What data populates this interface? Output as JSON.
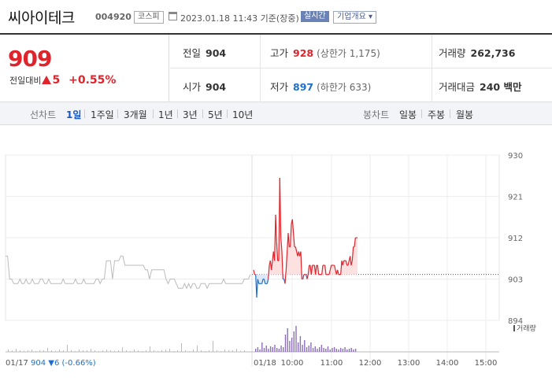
{
  "header": {
    "company_name": "씨아이테크",
    "stock_code": "004920",
    "market": "코스피",
    "date_text": "2023.01.18 11:43 기준(장중)",
    "realtime_label": "실시간",
    "overview_label": "기업개요 ▾",
    "calendar_icon": "calendar-icon"
  },
  "price": {
    "current": "909",
    "change_label": "전일대비",
    "change_value": "5",
    "change_percent": "+0.55%",
    "direction_icon": "up-triangle-icon",
    "up_color": "#e0242c",
    "down_color": "#1f6fc8"
  },
  "stats": {
    "prev_close_label": "전일",
    "prev_close": "904",
    "high_label": "고가",
    "high": "928",
    "upper_limit": "(상한가 1,175)",
    "volume_label": "거래량",
    "volume": "262,736",
    "open_label": "시가",
    "open": "904",
    "low_label": "저가",
    "low": "897",
    "lower_limit": "(하한가 633)",
    "amount_label": "거래대금",
    "amount": "240 백만"
  },
  "tabs": {
    "line_title": "선차트",
    "line_items": [
      "1일",
      "1주일",
      "3개월",
      "1년",
      "3년",
      "5년",
      "10년"
    ],
    "active_line": "1일",
    "candle_title": "봉차트",
    "candle_items": [
      "일봉",
      "주봉",
      "월봉"
    ]
  },
  "footer": {
    "prev_date": "01/17",
    "prev_close": "904",
    "prev_change": "▼6 (-0.66%)"
  },
  "chart_data": {
    "type": "line",
    "title": "",
    "y_ticks": [
      930,
      921,
      912,
      903,
      894
    ],
    "ylim": [
      894,
      930
    ],
    "x_ticks": [
      "01/17",
      "01/18",
      "10:00",
      "11:00",
      "12:00",
      "13:00",
      "14:00",
      "15:00"
    ],
    "reference_price": 904,
    "volume_label": "거래량",
    "series": [
      {
        "name": "",
        "segment": "01/17",
        "color": "#bbbbbb",
        "values": [
          908,
          908,
          903,
          903,
          902,
          902,
          902,
          903,
          902,
          902,
          903,
          902,
          902,
          903,
          902,
          902,
          902,
          903,
          903,
          902,
          902,
          903,
          902,
          902,
          902,
          902,
          902,
          902,
          903,
          902,
          902,
          902,
          902,
          902,
          903,
          902,
          902,
          902,
          903,
          902,
          902,
          902,
          902,
          902,
          903,
          903,
          902,
          903,
          903,
          907,
          907,
          907,
          903,
          907,
          907,
          907,
          908,
          908,
          906,
          906,
          906,
          906,
          906,
          906,
          906,
          906,
          906,
          906,
          905,
          905,
          903,
          905,
          905,
          905,
          905,
          905,
          905,
          905,
          903,
          902,
          903,
          903,
          903,
          902,
          901,
          901,
          901,
          902,
          901,
          902,
          901,
          902,
          902,
          901,
          901,
          902,
          902,
          902,
          901,
          902,
          902,
          902,
          902,
          902,
          902,
          902,
          903,
          902,
          902,
          902,
          902,
          902,
          902,
          902,
          902,
          902,
          903,
          903,
          903,
          904
        ]
      },
      {
        "name": "",
        "segment": "01/18",
        "color": "#e0242c",
        "values": [
          905,
          904,
          904,
          899,
          903,
          902,
          902,
          902,
          902,
          903,
          903,
          902,
          902,
          902,
          903,
          906,
          907,
          905,
          907,
          909,
          907,
          917,
          911,
          907,
          907,
          925,
          912,
          909,
          903,
          903,
          902,
          905,
          909,
          913,
          910,
          910,
          915,
          916,
          913,
          910,
          910,
          909,
          908,
          909,
          908,
          909,
          903,
          903,
          904,
          904,
          904,
          903,
          904,
          906,
          906,
          904,
          906,
          906,
          906,
          904,
          906,
          906,
          904,
          904,
          904,
          904,
          906,
          906,
          906,
          904,
          904,
          904,
          904,
          905,
          906,
          906,
          906,
          906,
          905,
          904,
          905,
          904,
          904,
          904,
          907,
          906,
          907,
          907,
          907,
          906,
          906,
          907,
          908,
          906,
          907,
          910,
          910,
          912,
          912,
          912
        ]
      }
    ]
  }
}
